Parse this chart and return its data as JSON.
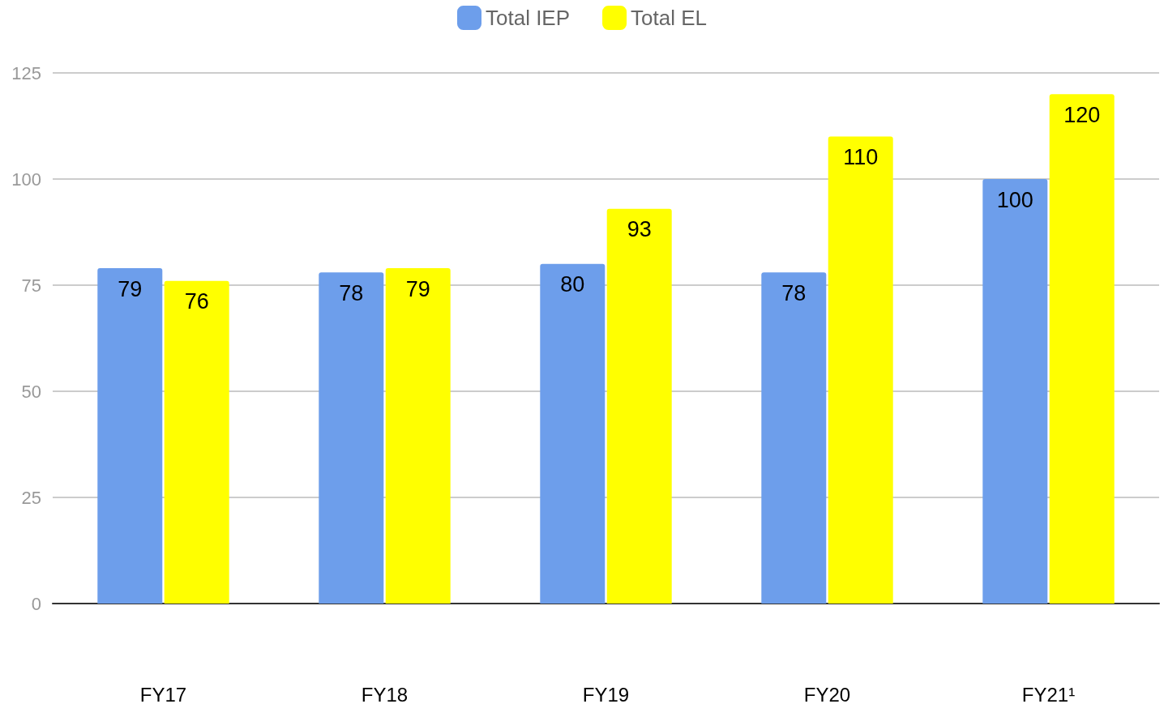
{
  "chart_data": {
    "type": "bar",
    "categories": [
      "FY17",
      "FY18",
      "FY19",
      "FY20",
      "FY21¹"
    ],
    "series": [
      {
        "name": "Total IEP",
        "color": "#6d9eeb",
        "values": [
          79,
          78,
          80,
          78,
          100
        ]
      },
      {
        "name": "Total EL",
        "color": "#ffff00",
        "values": [
          76,
          79,
          93,
          110,
          120
        ]
      }
    ],
    "ylim": [
      0,
      125
    ],
    "yticks": [
      0,
      25,
      50,
      75,
      100,
      125
    ],
    "grid": "y",
    "legend": "top",
    "data_labels": true
  }
}
